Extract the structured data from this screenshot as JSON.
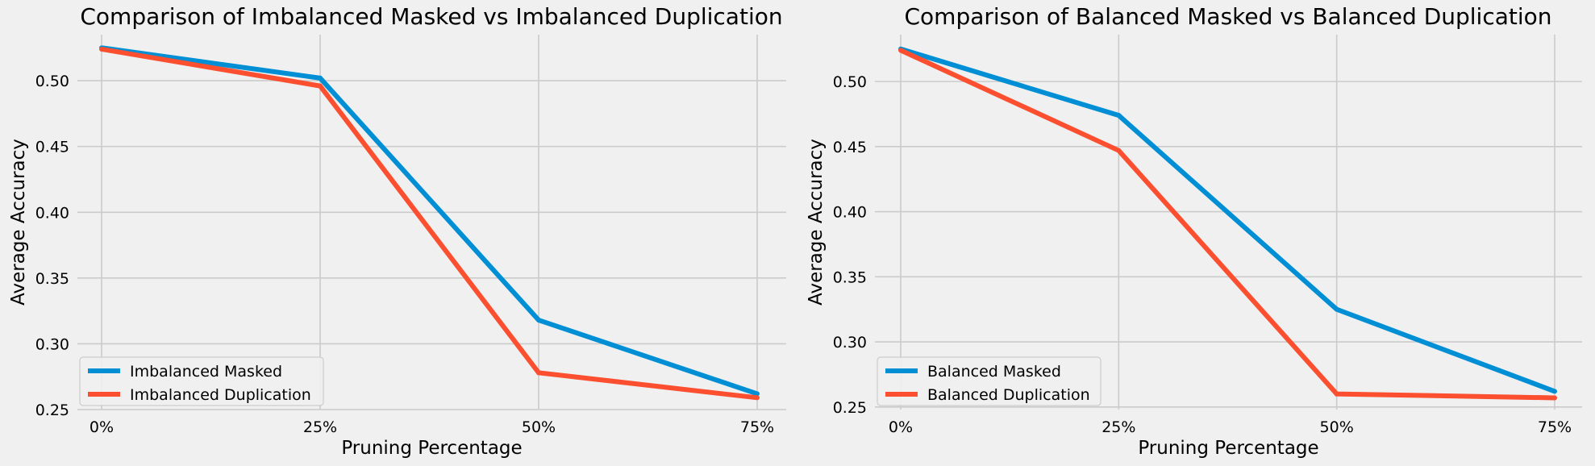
{
  "colors": {
    "background": "#f0f0f0",
    "grid": "#cbcbcb",
    "blue": "#008fd5",
    "red": "#fc4f30"
  },
  "chart_data": [
    {
      "type": "line",
      "title": "Comparison of Imbalanced Masked vs Imbalanced Duplication",
      "xlabel": "Pruning Percentage",
      "ylabel": "Average Accuracy",
      "categories": [
        "0%",
        "25%",
        "50%",
        "75%"
      ],
      "ylim": [
        0.25,
        0.535
      ],
      "yticks": [
        "0.25",
        "0.30",
        "0.35",
        "0.40",
        "0.45",
        "0.50"
      ],
      "grid": true,
      "legend_position": "lower-left",
      "series": [
        {
          "name": "Imbalanced Masked",
          "color": "#008fd5",
          "values": [
            0.525,
            0.502,
            0.318,
            0.262
          ]
        },
        {
          "name": "Imbalanced Duplication",
          "color": "#fc4f30",
          "values": [
            0.524,
            0.496,
            0.278,
            0.259
          ]
        }
      ]
    },
    {
      "type": "line",
      "title": "Comparison of Balanced Masked vs Balanced Duplication",
      "xlabel": "Pruning Percentage",
      "ylabel": "Average Accuracy",
      "categories": [
        "0%",
        "25%",
        "50%",
        "75%"
      ],
      "ylim": [
        0.248,
        0.536
      ],
      "yticks": [
        "0.25",
        "0.30",
        "0.35",
        "0.40",
        "0.45",
        "0.50"
      ],
      "grid": true,
      "legend_position": "lower-left",
      "series": [
        {
          "name": "Balanced Masked",
          "color": "#008fd5",
          "values": [
            0.525,
            0.474,
            0.325,
            0.262
          ]
        },
        {
          "name": "Balanced Duplication",
          "color": "#fc4f30",
          "values": [
            0.524,
            0.447,
            0.26,
            0.257
          ]
        }
      ]
    }
  ]
}
